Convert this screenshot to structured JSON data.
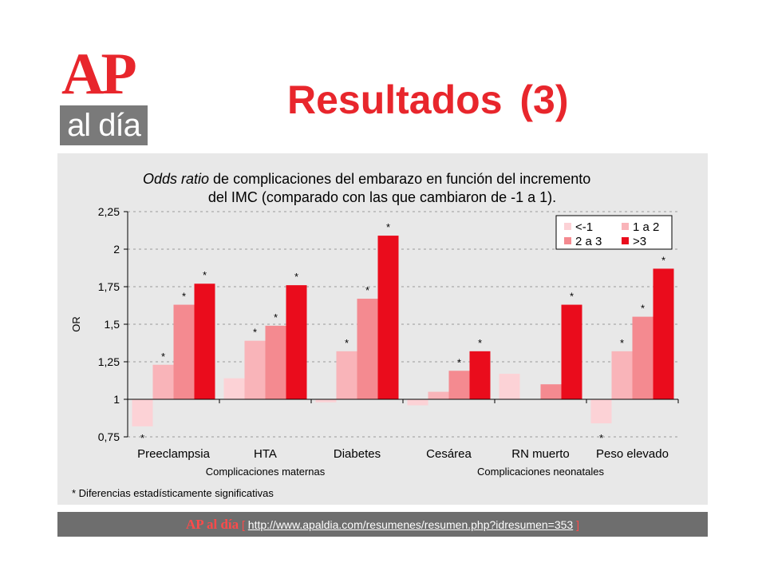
{
  "logo": {
    "top": "AP",
    "bottom": "al día"
  },
  "slide": {
    "title": "Resultados (3)"
  },
  "footer": {
    "brand": "AP al día",
    "bracket_open": "[",
    "url": "http://www.apaldia.com/resumenes/resumen.php?idresumen=353",
    "bracket_close": "]"
  },
  "chart_data": {
    "type": "bar",
    "title_line1_italic": "Odds ratio",
    "title_line1_rest": " de complicaciones del embarazo en función del incremento",
    "title_line2": "del IMC (comparado con las que cambiaron de -1 a 1).",
    "ylabel": "OR",
    "ylim": [
      0.75,
      2.25
    ],
    "baseline": 1,
    "yticks": [
      {
        "v": 0.75,
        "label": "0,75"
      },
      {
        "v": 1,
        "label": "1"
      },
      {
        "v": 1.25,
        "label": "1,25"
      },
      {
        "v": 1.5,
        "label": "1,5"
      },
      {
        "v": 1.75,
        "label": "1,75"
      },
      {
        "v": 2,
        "label": "2"
      },
      {
        "v": 2.25,
        "label": "2,25"
      }
    ],
    "grid": true,
    "legend_position": "top-right",
    "categories": [
      "Preeclampsia",
      "HTA",
      "Diabetes",
      "Cesárea",
      "RN muerto",
      "Peso elevado"
    ],
    "series": [
      {
        "name": "<-1",
        "color": "#fcd2d6",
        "values": [
          0.82,
          1.14,
          0.98,
          0.96,
          1.17,
          0.84
        ],
        "significant": [
          true,
          false,
          false,
          false,
          false,
          true
        ]
      },
      {
        "name": "1 a 2",
        "color": "#f9b4b9",
        "values": [
          1.23,
          1.39,
          1.32,
          1.05,
          1.0,
          1.32
        ],
        "significant": [
          true,
          true,
          true,
          false,
          false,
          true
        ]
      },
      {
        "name": "2 a 3",
        "color": "#f48a90",
        "values": [
          1.63,
          1.49,
          1.67,
          1.19,
          1.1,
          1.55
        ],
        "significant": [
          true,
          true,
          true,
          true,
          false,
          true
        ]
      },
      {
        "name": ">3",
        "color": "#ea0c1c",
        "values": [
          1.77,
          1.76,
          2.09,
          1.32,
          1.63,
          1.87
        ],
        "significant": [
          true,
          true,
          true,
          true,
          true,
          true
        ]
      }
    ],
    "significance_marker": "*",
    "group_labels": [
      {
        "label": "Complicaciones maternas",
        "categories": [
          "Preeclampsia",
          "HTA",
          "Diabetes"
        ]
      },
      {
        "label": "Complicaciones neonatales",
        "categories": [
          "Cesárea",
          "RN muerto",
          "Peso elevado"
        ]
      }
    ],
    "footnote": "* Diferencias estadísticamente significativas"
  }
}
